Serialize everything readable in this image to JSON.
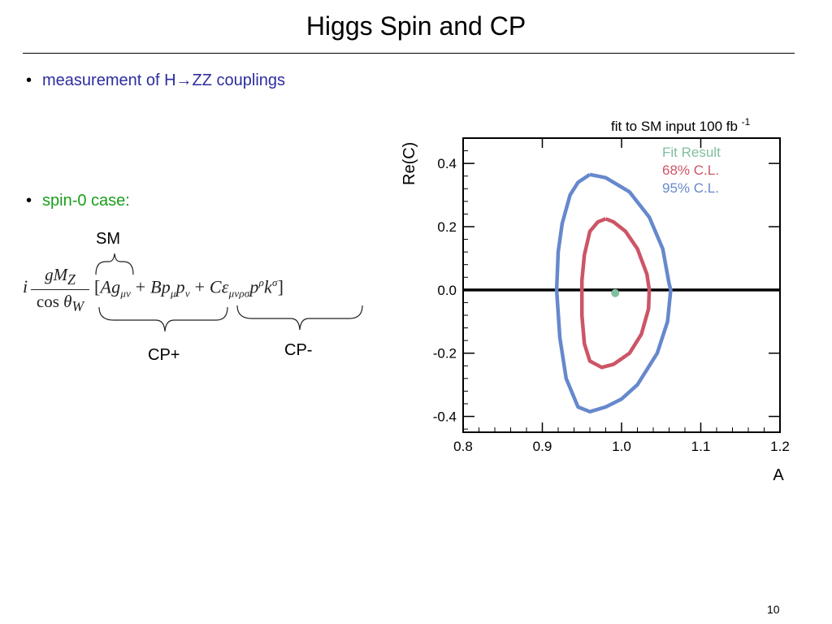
{
  "slide": {
    "title": "Higgs Spin and CP",
    "page_number": "10"
  },
  "bullets": [
    {
      "text": "measurement of H→ZZ couplings",
      "color": "#2d2d9f"
    },
    {
      "text": "spin-0 case:",
      "color": "#1a9e1a"
    }
  ],
  "bullet_glyph": "•",
  "formula": {
    "prefix": "i",
    "numerator": "gM",
    "numerator_sub": "Z",
    "denominator": "cos θ",
    "denominator_sub": "W",
    "labels": {
      "sm": "SM",
      "cp_plus": "CP+",
      "cp_minus": "CP-"
    }
  },
  "chart_data": {
    "type": "scatter",
    "title": "fit to SM input 100 fb",
    "title_superscript": "-1",
    "xlabel": "A",
    "ylabel": "Re(C)",
    "xlim": [
      0.8,
      1.2
    ],
    "ylim": [
      -0.45,
      0.48
    ],
    "x_ticks": [
      "0.8",
      "0.9",
      "1.0",
      "1.1",
      "1.2"
    ],
    "x_tick_values": [
      0.8,
      0.9,
      1.0,
      1.1,
      1.2
    ],
    "y_ticks": [
      "0.4",
      "0.2",
      "0.0",
      "-0.2",
      "-0.4"
    ],
    "y_tick_values": [
      0.4,
      0.2,
      0.0,
      -0.2,
      -0.4
    ],
    "reference_line": {
      "y": 0.0,
      "color": "#000000"
    },
    "legend": {
      "placement": "top-right",
      "entries": [
        {
          "label": "Fit Result",
          "color": "#7fbf9f"
        },
        {
          "label": "68% C.L.",
          "color": "#cc5566"
        },
        {
          "label": "95% C.L.",
          "color": "#6688cc"
        }
      ]
    },
    "series": [
      {
        "name": "Fit Result",
        "kind": "point",
        "color": "#7fbf9f",
        "points": [
          [
            0.992,
            -0.01
          ]
        ]
      },
      {
        "name": "68% C.L.",
        "kind": "contour",
        "color": "#cc5566",
        "points": [
          [
            0.98,
            0.225
          ],
          [
            0.99,
            0.215
          ],
          [
            1.005,
            0.185
          ],
          [
            1.02,
            0.13
          ],
          [
            1.032,
            0.05
          ],
          [
            1.035,
            0.0
          ],
          [
            1.034,
            -0.06
          ],
          [
            1.025,
            -0.14
          ],
          [
            1.01,
            -0.2
          ],
          [
            0.99,
            -0.235
          ],
          [
            0.975,
            -0.245
          ],
          [
            0.96,
            -0.225
          ],
          [
            0.953,
            -0.17
          ],
          [
            0.95,
            -0.08
          ],
          [
            0.95,
            0.03
          ],
          [
            0.953,
            0.11
          ],
          [
            0.96,
            0.185
          ],
          [
            0.97,
            0.215
          ],
          [
            0.98,
            0.225
          ]
        ]
      },
      {
        "name": "95% C.L.",
        "kind": "contour",
        "color": "#6688cc",
        "points": [
          [
            0.96,
            0.365
          ],
          [
            0.98,
            0.355
          ],
          [
            1.01,
            0.31
          ],
          [
            1.035,
            0.23
          ],
          [
            1.052,
            0.13
          ],
          [
            1.06,
            0.02
          ],
          [
            1.062,
            0.0
          ],
          [
            1.058,
            -0.1
          ],
          [
            1.045,
            -0.2
          ],
          [
            1.02,
            -0.3
          ],
          [
            1.0,
            -0.345
          ],
          [
            0.98,
            -0.37
          ],
          [
            0.96,
            -0.385
          ],
          [
            0.945,
            -0.37
          ],
          [
            0.93,
            -0.28
          ],
          [
            0.922,
            -0.15
          ],
          [
            0.918,
            0.0
          ],
          [
            0.92,
            0.12
          ],
          [
            0.925,
            0.21
          ],
          [
            0.935,
            0.3
          ],
          [
            0.945,
            0.34
          ],
          [
            0.96,
            0.365
          ]
        ]
      }
    ]
  }
}
